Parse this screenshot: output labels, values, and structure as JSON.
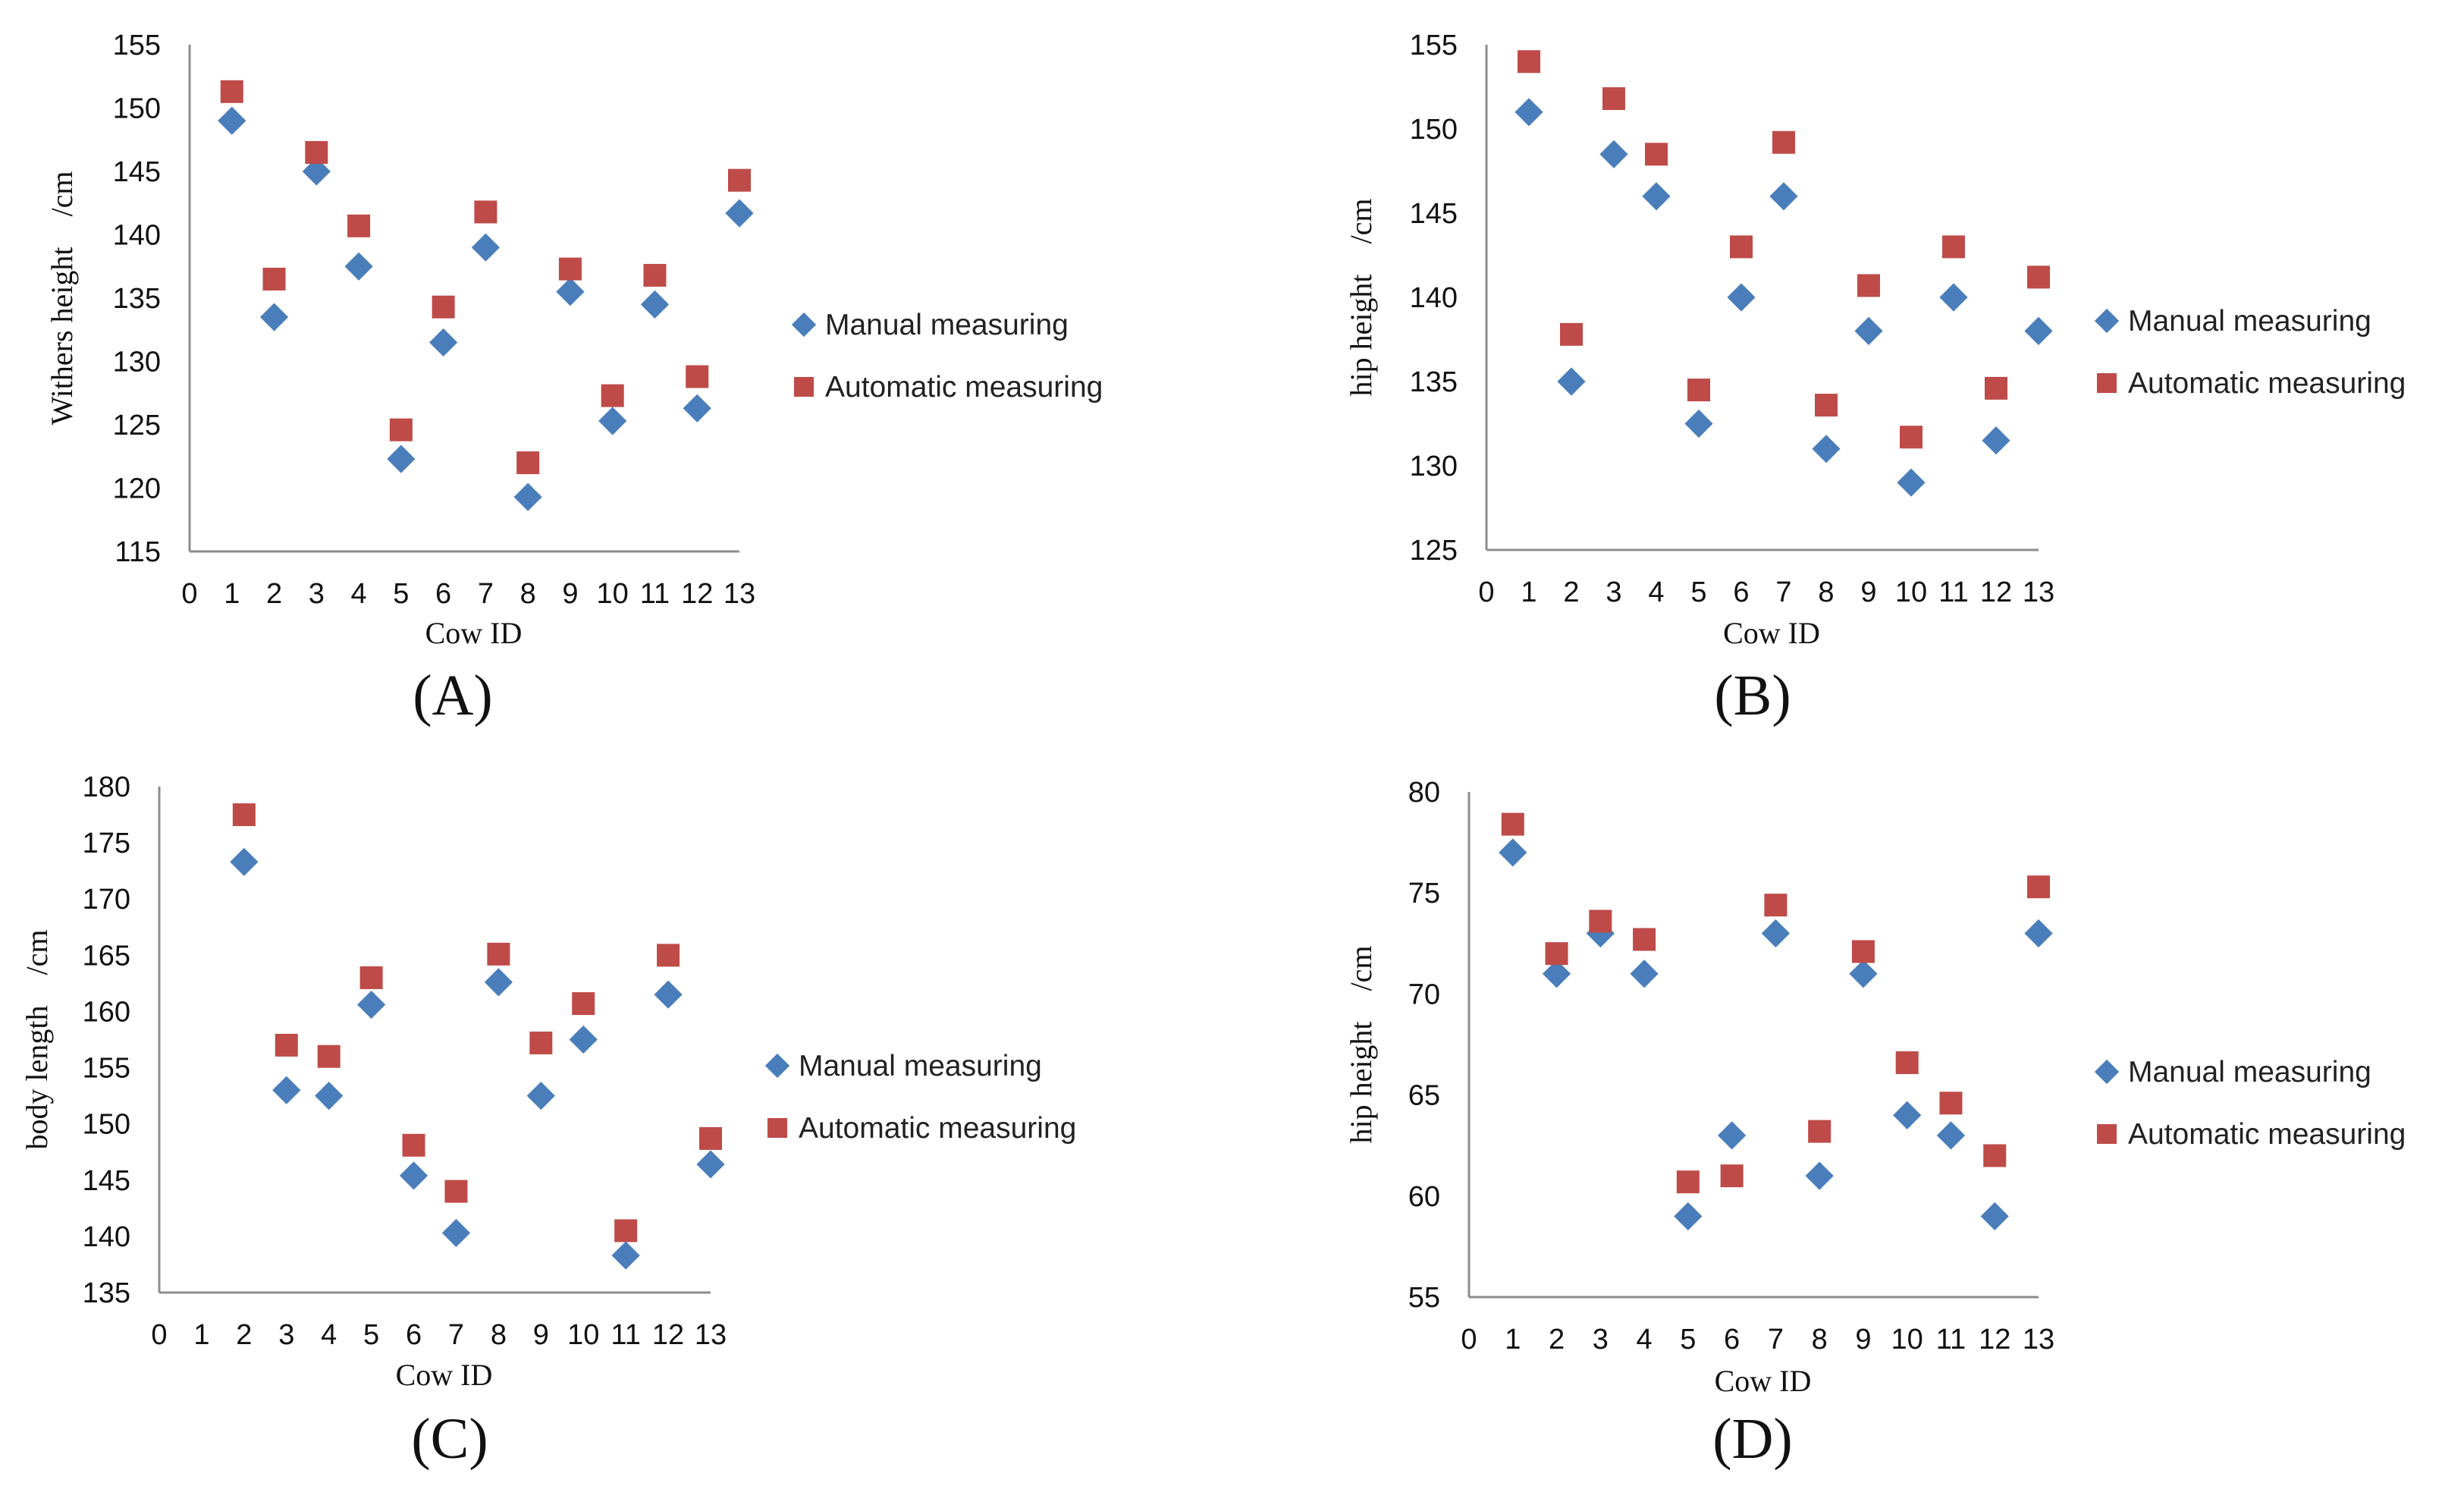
{
  "figure": {
    "panels": [
      "(A)",
      "(B)",
      "(C)",
      "(D)"
    ]
  },
  "colors": {
    "manual": "#4a7ebb",
    "automatic": "#be4b48",
    "axis": "#8c8c8c",
    "text": "#111111"
  },
  "chart_data": [
    {
      "type": "scatter",
      "panel_label": "(A)",
      "xlabel": "Cow ID",
      "ylabel": "Withers height　/cm",
      "xlim": [
        0,
        13
      ],
      "ylim": [
        115,
        155
      ],
      "xticks": [
        "0",
        "1",
        "2",
        "3",
        "4",
        "5",
        "6",
        "7",
        "8",
        "9",
        "10",
        "11",
        "12",
        "13"
      ],
      "yticks": [
        "115",
        "120",
        "125",
        "130",
        "135",
        "140",
        "145",
        "150",
        "155"
      ],
      "legend": "right",
      "series": [
        {
          "name": "Manual measuring",
          "marker": "diamond",
          "x": [
            1,
            2,
            3,
            4,
            5,
            6,
            7,
            8,
            9,
            10,
            11,
            12,
            13
          ],
          "y": [
            149,
            133.5,
            145,
            137.5,
            122.3,
            131.5,
            139,
            119.3,
            135.5,
            125.3,
            134.5,
            126.3,
            141.7
          ]
        },
        {
          "name": "Automatic measuring",
          "marker": "square",
          "x": [
            1,
            2,
            3,
            4,
            5,
            6,
            7,
            8,
            9,
            10,
            11,
            12,
            13
          ],
          "y": [
            151.3,
            136.5,
            146.5,
            140.7,
            124.6,
            134.3,
            141.8,
            122,
            137.3,
            127.3,
            136.8,
            128.8,
            144.3
          ]
        }
      ]
    },
    {
      "type": "scatter",
      "panel_label": "(B)",
      "xlabel": "Cow ID",
      "ylabel": "hip height　/cm",
      "xlim": [
        0,
        13
      ],
      "ylim": [
        125,
        155
      ],
      "xticks": [
        "0",
        "1",
        "2",
        "3",
        "4",
        "5",
        "6",
        "7",
        "8",
        "9",
        "10",
        "11",
        "12",
        "13"
      ],
      "yticks": [
        "125",
        "130",
        "135",
        "140",
        "145",
        "150",
        "155"
      ],
      "legend": "right",
      "series": [
        {
          "name": "Manual measuring",
          "marker": "diamond",
          "x": [
            1,
            2,
            3,
            4,
            5,
            6,
            7,
            8,
            9,
            10,
            11,
            12,
            13
          ],
          "y": [
            151,
            135,
            148.5,
            146,
            132.5,
            140,
            146,
            131,
            138,
            129,
            140,
            131.5,
            138
          ]
        },
        {
          "name": "Automatic measuring",
          "marker": "square",
          "x": [
            1,
            2,
            3,
            4,
            5,
            6,
            7,
            8,
            9,
            10,
            11,
            12,
            13
          ],
          "y": [
            154,
            137.8,
            151.8,
            148.5,
            134.5,
            143,
            149.2,
            133.6,
            140.7,
            131.7,
            143,
            134.6,
            141.2
          ]
        }
      ]
    },
    {
      "type": "scatter",
      "panel_label": "(C)",
      "xlabel": "Cow ID",
      "ylabel": "body length　/cm",
      "xlim": [
        0,
        13
      ],
      "ylim": [
        135,
        180
      ],
      "xticks": [
        "0",
        "1",
        "2",
        "3",
        "4",
        "5",
        "6",
        "7",
        "8",
        "9",
        "10",
        "11",
        "12",
        "13"
      ],
      "yticks": [
        "135",
        "140",
        "145",
        "150",
        "155",
        "160",
        "165",
        "170",
        "175",
        "180"
      ],
      "legend": "right",
      "series": [
        {
          "name": "Manual measuring",
          "marker": "diamond",
          "x": [
            2,
            3,
            4,
            5,
            6,
            7,
            8,
            9,
            10,
            11,
            12,
            13
          ],
          "y": [
            173.3,
            153,
            152.5,
            160.6,
            145.4,
            140.3,
            162.6,
            152.5,
            157.5,
            138.3,
            161.5,
            146.4
          ]
        },
        {
          "name": "Automatic measuring",
          "marker": "square",
          "x": [
            2,
            3,
            4,
            5,
            6,
            7,
            8,
            9,
            10,
            11,
            12,
            13
          ],
          "y": [
            177.5,
            157,
            156,
            163,
            148.1,
            144,
            165.1,
            157.2,
            160.7,
            140.5,
            165,
            148.7
          ]
        }
      ]
    },
    {
      "type": "scatter",
      "panel_label": "(D)",
      "xlabel": "Cow ID",
      "ylabel": "hip height　/cm",
      "xlim": [
        0,
        13
      ],
      "ylim": [
        55,
        80
      ],
      "xticks": [
        "0",
        "1",
        "2",
        "3",
        "4",
        "5",
        "6",
        "7",
        "8",
        "9",
        "10",
        "11",
        "12",
        "13"
      ],
      "yticks": [
        "55",
        "60",
        "65",
        "70",
        "75",
        "80"
      ],
      "legend": "right",
      "series": [
        {
          "name": "Manual measuring",
          "marker": "diamond",
          "x": [
            1,
            2,
            3,
            4,
            5,
            6,
            7,
            8,
            9,
            10,
            11,
            12,
            13
          ],
          "y": [
            77,
            71,
            73,
            71,
            59,
            63,
            73,
            61,
            71,
            64,
            63,
            59,
            73
          ]
        },
        {
          "name": "Automatic measuring",
          "marker": "square",
          "x": [
            1,
            2,
            3,
            4,
            5,
            6,
            7,
            8,
            9,
            10,
            11,
            12,
            13
          ],
          "y": [
            78.4,
            72,
            73.6,
            72.7,
            60.7,
            61,
            74.4,
            63.2,
            72.1,
            66.6,
            64.6,
            62,
            75.3
          ]
        }
      ]
    }
  ]
}
